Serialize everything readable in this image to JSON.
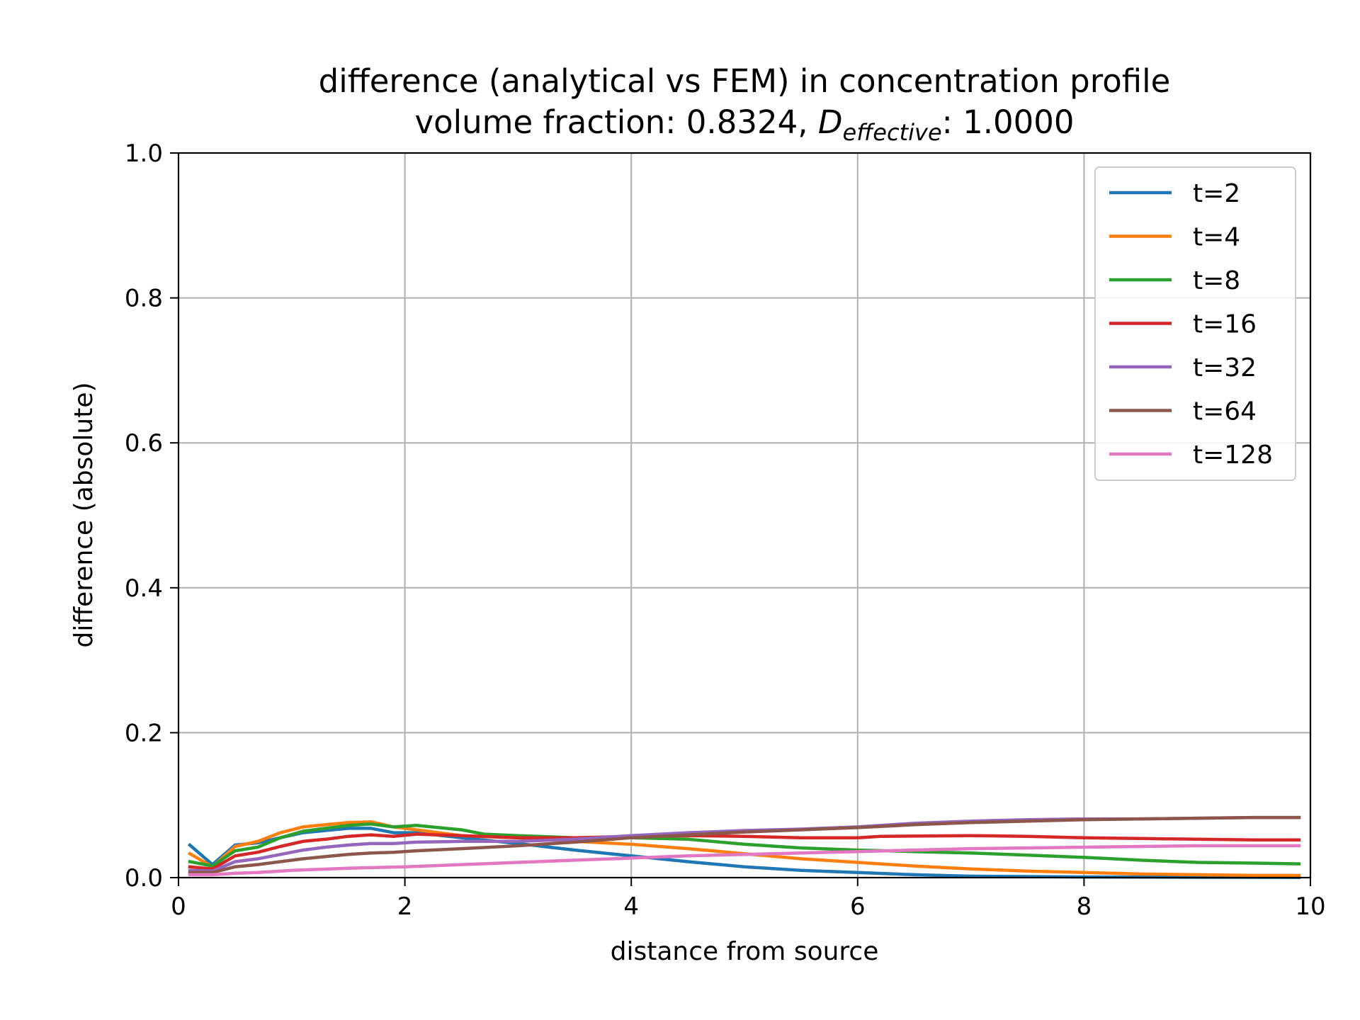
{
  "chart_data": {
    "type": "line",
    "title_line1": "difference (analytical vs FEM) in concentration profile",
    "title_line2_prefix": "volume fraction: 0.8324, ",
    "title_line2_var": "D",
    "title_line2_sub": "effective",
    "title_line2_suffix": ": 1.0000",
    "xlabel": "distance from source",
    "ylabel": "difference (absolute)",
    "xlim": [
      0,
      10
    ],
    "ylim": [
      0,
      1
    ],
    "xticks": [
      0,
      2,
      4,
      6,
      8,
      10
    ],
    "xtick_labels": [
      "0",
      "2",
      "4",
      "6",
      "8",
      "10"
    ],
    "yticks": [
      0,
      0.2,
      0.4,
      0.6,
      0.8,
      1.0
    ],
    "ytick_labels": [
      "0.0",
      "0.2",
      "0.4",
      "0.6",
      "0.8",
      "1.0"
    ],
    "grid": true,
    "legend_position": "upper right",
    "series": [
      {
        "name": "t=2",
        "color": "#1f77b4",
        "points": [
          [
            0.1,
            0.045
          ],
          [
            0.3,
            0.018
          ],
          [
            0.5,
            0.045
          ],
          [
            0.7,
            0.048
          ],
          [
            0.9,
            0.055
          ],
          [
            1.1,
            0.062
          ],
          [
            1.3,
            0.065
          ],
          [
            1.5,
            0.068
          ],
          [
            1.7,
            0.068
          ],
          [
            1.9,
            0.062
          ],
          [
            2.1,
            0.062
          ],
          [
            2.5,
            0.055
          ],
          [
            3.0,
            0.047
          ],
          [
            3.5,
            0.038
          ],
          [
            4.0,
            0.03
          ],
          [
            4.5,
            0.022
          ],
          [
            5.0,
            0.015
          ],
          [
            5.5,
            0.01
          ],
          [
            6.0,
            0.007
          ],
          [
            6.5,
            0.004
          ],
          [
            7.0,
            0.002
          ],
          [
            8.0,
            0.001
          ],
          [
            9.0,
            0.0005
          ],
          [
            9.9,
            0.0003
          ]
        ]
      },
      {
        "name": "t=4",
        "color": "#ff7f0e",
        "points": [
          [
            0.1,
            0.033
          ],
          [
            0.3,
            0.015
          ],
          [
            0.5,
            0.043
          ],
          [
            0.7,
            0.05
          ],
          [
            0.9,
            0.062
          ],
          [
            1.1,
            0.07
          ],
          [
            1.3,
            0.073
          ],
          [
            1.5,
            0.076
          ],
          [
            1.7,
            0.077
          ],
          [
            1.9,
            0.07
          ],
          [
            2.1,
            0.066
          ],
          [
            2.5,
            0.058
          ],
          [
            3.0,
            0.055
          ],
          [
            3.5,
            0.05
          ],
          [
            4.0,
            0.046
          ],
          [
            4.5,
            0.04
          ],
          [
            5.0,
            0.033
          ],
          [
            5.5,
            0.026
          ],
          [
            6.0,
            0.021
          ],
          [
            6.5,
            0.016
          ],
          [
            7.0,
            0.012
          ],
          [
            7.5,
            0.009
          ],
          [
            8.0,
            0.007
          ],
          [
            8.5,
            0.005
          ],
          [
            9.0,
            0.004
          ],
          [
            9.5,
            0.003
          ],
          [
            9.9,
            0.003
          ]
        ]
      },
      {
        "name": "t=8",
        "color": "#2ca02c",
        "points": [
          [
            0.1,
            0.022
          ],
          [
            0.3,
            0.016
          ],
          [
            0.5,
            0.037
          ],
          [
            0.7,
            0.042
          ],
          [
            0.9,
            0.055
          ],
          [
            1.1,
            0.064
          ],
          [
            1.3,
            0.068
          ],
          [
            1.5,
            0.072
          ],
          [
            1.7,
            0.074
          ],
          [
            1.9,
            0.07
          ],
          [
            2.1,
            0.072
          ],
          [
            2.5,
            0.066
          ],
          [
            2.7,
            0.06
          ],
          [
            3.0,
            0.058
          ],
          [
            3.5,
            0.055
          ],
          [
            4.0,
            0.055
          ],
          [
            4.5,
            0.053
          ],
          [
            5.0,
            0.046
          ],
          [
            5.5,
            0.041
          ],
          [
            6.0,
            0.038
          ],
          [
            6.5,
            0.036
          ],
          [
            7.0,
            0.034
          ],
          [
            7.5,
            0.031
          ],
          [
            8.0,
            0.028
          ],
          [
            8.5,
            0.024
          ],
          [
            9.0,
            0.021
          ],
          [
            9.5,
            0.02
          ],
          [
            9.9,
            0.019
          ]
        ]
      },
      {
        "name": "t=16",
        "color": "#d62728",
        "points": [
          [
            0.1,
            0.015
          ],
          [
            0.3,
            0.012
          ],
          [
            0.5,
            0.03
          ],
          [
            0.7,
            0.035
          ],
          [
            0.9,
            0.043
          ],
          [
            1.1,
            0.05
          ],
          [
            1.3,
            0.053
          ],
          [
            1.5,
            0.057
          ],
          [
            1.7,
            0.059
          ],
          [
            1.9,
            0.057
          ],
          [
            2.1,
            0.06
          ],
          [
            2.5,
            0.058
          ],
          [
            3.0,
            0.055
          ],
          [
            3.5,
            0.055
          ],
          [
            4.0,
            0.057
          ],
          [
            4.5,
            0.058
          ],
          [
            5.0,
            0.057
          ],
          [
            5.5,
            0.055
          ],
          [
            6.0,
            0.055
          ],
          [
            6.2,
            0.057
          ],
          [
            7.0,
            0.058
          ],
          [
            7.5,
            0.057
          ],
          [
            8.0,
            0.055
          ],
          [
            8.5,
            0.054
          ],
          [
            9.0,
            0.053
          ],
          [
            9.5,
            0.052
          ],
          [
            9.9,
            0.052
          ]
        ]
      },
      {
        "name": "t=32",
        "color": "#9467bd",
        "points": [
          [
            0.1,
            0.01
          ],
          [
            0.3,
            0.009
          ],
          [
            0.5,
            0.022
          ],
          [
            0.7,
            0.026
          ],
          [
            0.9,
            0.032
          ],
          [
            1.1,
            0.038
          ],
          [
            1.3,
            0.042
          ],
          [
            1.5,
            0.045
          ],
          [
            1.7,
            0.047
          ],
          [
            1.9,
            0.047
          ],
          [
            2.1,
            0.049
          ],
          [
            2.5,
            0.05
          ],
          [
            3.0,
            0.05
          ],
          [
            3.5,
            0.053
          ],
          [
            4.0,
            0.058
          ],
          [
            4.5,
            0.062
          ],
          [
            5.0,
            0.065
          ],
          [
            5.5,
            0.067
          ],
          [
            6.0,
            0.07
          ],
          [
            6.5,
            0.075
          ],
          [
            7.0,
            0.078
          ],
          [
            7.5,
            0.08
          ],
          [
            8.0,
            0.081
          ],
          [
            8.5,
            0.081
          ],
          [
            9.0,
            0.082
          ],
          [
            9.5,
            0.083
          ],
          [
            9.9,
            0.083
          ]
        ]
      },
      {
        "name": "t=64",
        "color": "#8c564b",
        "points": [
          [
            0.1,
            0.007
          ],
          [
            0.3,
            0.007
          ],
          [
            0.5,
            0.015
          ],
          [
            0.7,
            0.018
          ],
          [
            0.9,
            0.022
          ],
          [
            1.1,
            0.026
          ],
          [
            1.3,
            0.029
          ],
          [
            1.5,
            0.032
          ],
          [
            1.7,
            0.034
          ],
          [
            1.9,
            0.035
          ],
          [
            2.1,
            0.037
          ],
          [
            2.5,
            0.04
          ],
          [
            3.0,
            0.044
          ],
          [
            3.5,
            0.049
          ],
          [
            4.0,
            0.055
          ],
          [
            4.5,
            0.059
          ],
          [
            5.0,
            0.063
          ],
          [
            5.5,
            0.066
          ],
          [
            6.0,
            0.069
          ],
          [
            6.5,
            0.073
          ],
          [
            7.0,
            0.076
          ],
          [
            7.5,
            0.078
          ],
          [
            8.0,
            0.08
          ],
          [
            8.5,
            0.081
          ],
          [
            9.0,
            0.082
          ],
          [
            9.5,
            0.083
          ],
          [
            9.9,
            0.083
          ]
        ]
      },
      {
        "name": "t=128",
        "color": "#e377c2",
        "points": [
          [
            0.1,
            0.004
          ],
          [
            0.3,
            0.004
          ],
          [
            0.5,
            0.006
          ],
          [
            0.7,
            0.007
          ],
          [
            1.0,
            0.01
          ],
          [
            1.5,
            0.013
          ],
          [
            2.0,
            0.015
          ],
          [
            2.5,
            0.018
          ],
          [
            3.0,
            0.021
          ],
          [
            3.5,
            0.024
          ],
          [
            4.0,
            0.027
          ],
          [
            4.5,
            0.03
          ],
          [
            5.0,
            0.032
          ],
          [
            5.5,
            0.034
          ],
          [
            6.0,
            0.036
          ],
          [
            6.5,
            0.038
          ],
          [
            7.0,
            0.04
          ],
          [
            7.5,
            0.041
          ],
          [
            8.0,
            0.042
          ],
          [
            8.5,
            0.043
          ],
          [
            9.0,
            0.044
          ],
          [
            9.5,
            0.044
          ],
          [
            9.9,
            0.044
          ]
        ]
      }
    ]
  }
}
